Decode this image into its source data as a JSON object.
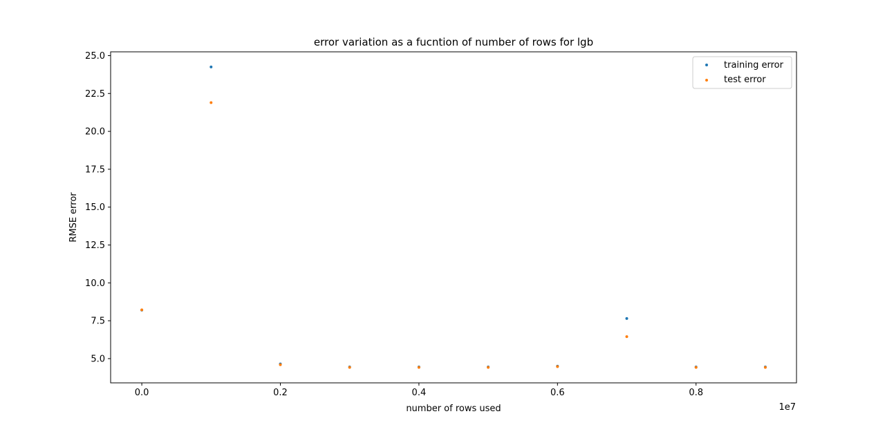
{
  "chart_data": {
    "type": "scatter",
    "title": "error variation as a fucntion of number of rows for lgb",
    "xlabel": "number of rows used",
    "ylabel": "RMSE error",
    "x_offset_label": "1e7",
    "xlim": [
      -0.045,
      0.945
    ],
    "ylim": [
      3.4,
      25.25
    ],
    "x_ticks": [
      0.0,
      0.2,
      0.4,
      0.6,
      0.8
    ],
    "x_tick_labels": [
      "0.0",
      "0.2",
      "0.4",
      "0.6",
      "0.8"
    ],
    "y_ticks": [
      5.0,
      7.5,
      10.0,
      12.5,
      15.0,
      17.5,
      20.0,
      22.5,
      25.0
    ],
    "y_tick_labels": [
      "5.0",
      "7.5",
      "10.0",
      "12.5",
      "15.0",
      "17.5",
      "20.0",
      "22.5",
      "25.0"
    ],
    "x": [
      0.0,
      0.1,
      0.2,
      0.3,
      0.4,
      0.5,
      0.6,
      0.7,
      0.8,
      0.9
    ],
    "series": [
      {
        "name": "training error",
        "color": "#1f77b4",
        "values": [
          8.2,
          24.25,
          4.65,
          4.45,
          4.45,
          4.45,
          4.5,
          7.65,
          4.45,
          4.45
        ]
      },
      {
        "name": "test error",
        "color": "#ff7f0e",
        "values": [
          8.22,
          21.9,
          4.6,
          4.42,
          4.42,
          4.42,
          4.47,
          6.45,
          4.42,
          4.42
        ]
      }
    ],
    "legend_position": "upper right",
    "grid": false
  }
}
